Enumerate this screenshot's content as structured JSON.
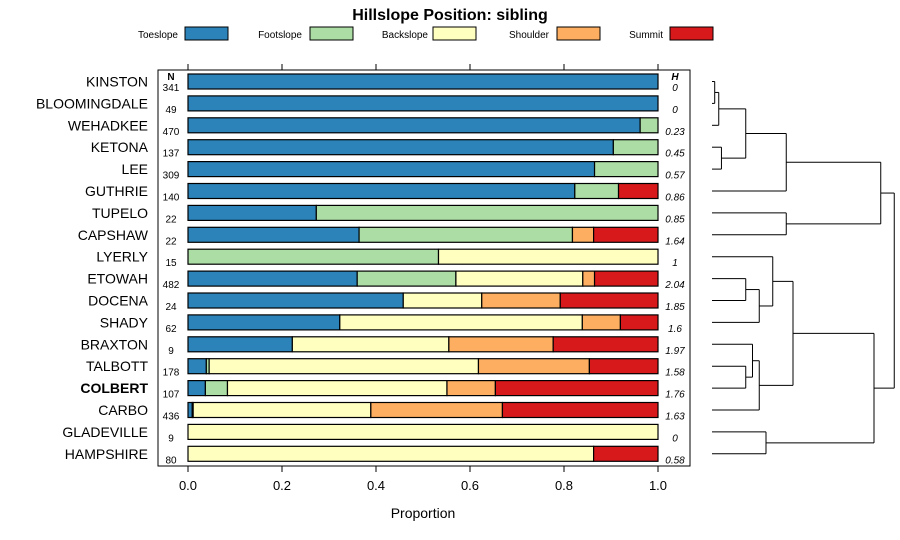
{
  "chart_data": {
    "type": "bar",
    "orientation": "horizontal",
    "stacked": true,
    "title": "Hillslope Position: sibling",
    "xlabel": "Proportion",
    "xlim": [
      0,
      1
    ],
    "xticks": [
      "0.0",
      "0.2",
      "0.4",
      "0.6",
      "0.8",
      "1.0"
    ],
    "n_header": "N",
    "h_header": "H",
    "legend_placement": "top",
    "series": [
      {
        "name": "Toeslope",
        "color": "#2b83ba"
      },
      {
        "name": "Footslope",
        "color": "#abdda4"
      },
      {
        "name": "Backslope",
        "color": "#ffffbf"
      },
      {
        "name": "Shoulder",
        "color": "#fdae61"
      },
      {
        "name": "Summit",
        "color": "#d7191c"
      }
    ],
    "rows": [
      {
        "label": "KINSTON",
        "n": "341",
        "h": "0",
        "bold": false,
        "values": [
          1.0,
          0,
          0,
          0,
          0
        ]
      },
      {
        "label": "BLOOMINGDALE",
        "n": "49",
        "h": "0",
        "bold": false,
        "values": [
          1.0,
          0,
          0,
          0,
          0
        ]
      },
      {
        "label": "WEHADKEE",
        "n": "470",
        "h": "0.23",
        "bold": false,
        "values": [
          0.962,
          0.038,
          0,
          0,
          0
        ]
      },
      {
        "label": "KETONA",
        "n": "137",
        "h": "0.45",
        "bold": false,
        "values": [
          0.905,
          0.095,
          0,
          0,
          0
        ]
      },
      {
        "label": "LEE",
        "n": "309",
        "h": "0.57",
        "bold": false,
        "values": [
          0.865,
          0.135,
          0,
          0,
          0
        ]
      },
      {
        "label": "GUTHRIE",
        "n": "140",
        "h": "0.86",
        "bold": false,
        "values": [
          0.823,
          0.093,
          0,
          0,
          0.084
        ]
      },
      {
        "label": "TUPELO",
        "n": "22",
        "h": "0.85",
        "bold": false,
        "values": [
          0.273,
          0.727,
          0,
          0,
          0
        ]
      },
      {
        "label": "CAPSHAW",
        "n": "22",
        "h": "1.64",
        "bold": false,
        "values": [
          0.364,
          0.454,
          0,
          0.045,
          0.137
        ]
      },
      {
        "label": "LYERLY",
        "n": "15",
        "h": "1",
        "bold": false,
        "values": [
          0,
          0.533,
          0.467,
          0,
          0
        ]
      },
      {
        "label": "ETOWAH",
        "n": "482",
        "h": "2.04",
        "bold": false,
        "values": [
          0.36,
          0.21,
          0.27,
          0.025,
          0.135
        ]
      },
      {
        "label": "DOCENA",
        "n": "24",
        "h": "1.85",
        "bold": false,
        "values": [
          0.458,
          0,
          0.167,
          0.167,
          0.208
        ]
      },
      {
        "label": "SHADY",
        "n": "62",
        "h": "1.6",
        "bold": false,
        "values": [
          0.323,
          0,
          0.516,
          0.081,
          0.08
        ]
      },
      {
        "label": "BRAXTON",
        "n": "9",
        "h": "1.97",
        "bold": false,
        "values": [
          0.222,
          0,
          0.333,
          0.222,
          0.223
        ]
      },
      {
        "label": "TALBOTT",
        "n": "178",
        "h": "1.58",
        "bold": false,
        "values": [
          0.039,
          0.006,
          0.573,
          0.236,
          0.146
        ]
      },
      {
        "label": "COLBERT",
        "n": "107",
        "h": "1.76",
        "bold": true,
        "values": [
          0.037,
          0.047,
          0.467,
          0.103,
          0.346
        ]
      },
      {
        "label": "CARBO",
        "n": "436",
        "h": "1.63",
        "bold": false,
        "values": [
          0.009,
          0.002,
          0.378,
          0.28,
          0.331
        ]
      },
      {
        "label": "GLADEVILLE",
        "n": "9",
        "h": "0",
        "bold": false,
        "values": [
          0,
          0,
          1.0,
          0,
          0
        ]
      },
      {
        "label": "HAMPSHIRE",
        "n": "80",
        "h": "0.58",
        "bold": false,
        "values": [
          0,
          0,
          0.863,
          0,
          0.137
        ]
      }
    ],
    "dendrogram_merges": [
      [
        -1,
        -2,
        0.02
      ],
      [
        -3,
        1,
        0.05
      ],
      [
        -4,
        -5,
        0.07
      ],
      [
        2,
        3,
        0.25
      ],
      [
        -6,
        4,
        0.55
      ],
      [
        -7,
        -8,
        0.55
      ],
      [
        5,
        6,
        1.25
      ],
      [
        -10,
        -11,
        0.25
      ],
      [
        8,
        -12,
        0.35
      ],
      [
        9,
        -9,
        0.45
      ],
      [
        -14,
        -15,
        0.25
      ],
      [
        -13,
        11,
        0.3
      ],
      [
        12,
        -16,
        0.35
      ],
      [
        10,
        13,
        0.6
      ],
      [
        -17,
        -18,
        0.4
      ],
      [
        14,
        15,
        1.2
      ],
      [
        7,
        16,
        1.35
      ]
    ]
  }
}
